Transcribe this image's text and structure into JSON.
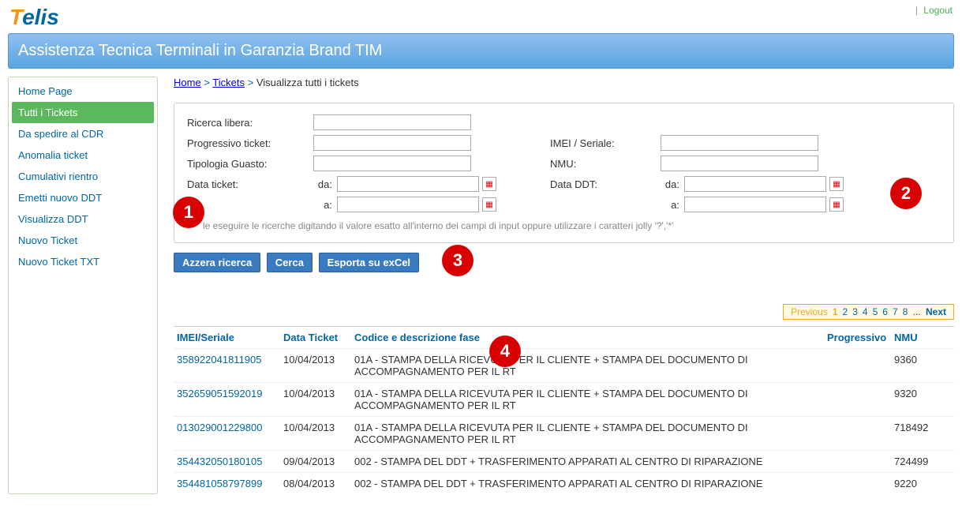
{
  "user": {
    "name": "",
    "logout": "Logout"
  },
  "logo": {
    "part1": "T",
    "part2": "elis"
  },
  "headerTitle": "Assistenza Tecnica Terminali in Garanzia Brand TIM",
  "sidebar": {
    "items": [
      {
        "label": "Home Page",
        "active": false
      },
      {
        "label": "Tutti i Tickets",
        "active": true
      },
      {
        "label": "Da spedire al CDR",
        "active": false
      },
      {
        "label": "Anomalia ticket",
        "active": false
      },
      {
        "label": "Cumulativi rientro",
        "active": false
      },
      {
        "label": "Emetti nuovo DDT",
        "active": false
      },
      {
        "label": "Visualizza DDT",
        "active": false
      },
      {
        "label": "Nuovo Ticket",
        "active": false
      },
      {
        "label": "Nuovo Ticket TXT",
        "active": false
      }
    ]
  },
  "breadcrumb": {
    "home": "Home",
    "tickets": "Tickets",
    "current": "Visualizza tutti i tickets",
    "sep": ">"
  },
  "filters": {
    "ricercaLibera": {
      "label": "Ricerca libera:",
      "value": ""
    },
    "progressivo": {
      "label": "Progressivo ticket:",
      "value": ""
    },
    "tipologia": {
      "label": "Tipologia Guasto:",
      "value": ""
    },
    "dataTicket": {
      "label": "Data ticket:",
      "daLabel": "da:",
      "aLabel": "a:",
      "da": "",
      "a": ""
    },
    "imei": {
      "label": "IMEI / Seriale:",
      "value": ""
    },
    "nmu": {
      "label": "NMU:",
      "value": ""
    },
    "dataDDT": {
      "label": "Data DDT:",
      "daLabel": "da:",
      "aLabel": "a:",
      "da": "",
      "a": ""
    },
    "hint": "le eseguire le ricerche digitando il valore esatto all'interno dei campi di input oppure utilizzare i caratteri jolly '?','*'"
  },
  "buttons": {
    "azzera": "Azzera ricerca",
    "cerca": "Cerca",
    "esporta": "Esporta su exCel"
  },
  "annotations": {
    "1": "1",
    "2": "2",
    "3": "3",
    "4": "4"
  },
  "pager": {
    "previous": "Previous",
    "pages": [
      "1",
      "2",
      "3",
      "4",
      "5",
      "6",
      "7",
      "8"
    ],
    "ellipsis": "...",
    "next": "Next",
    "current": "1"
  },
  "table": {
    "headers": {
      "imei": "IMEI/Seriale",
      "data": "Data Ticket",
      "fase": "Codice e descrizione fase",
      "progressivo": "Progressivo",
      "nmu": "NMU"
    },
    "rows": [
      {
        "imei": "358922041811905",
        "data": "10/04/2013",
        "fase": "01A - STAMPA DELLA RICEVUTA PER IL CLIENTE + STAMPA DEL DOCUMENTO DI ACCOMPAGNAMENTO PER IL RT",
        "progressivo": "",
        "nmu": "9360"
      },
      {
        "imei": "352659051592019",
        "data": "10/04/2013",
        "fase": "01A - STAMPA DELLA RICEVUTA PER IL CLIENTE + STAMPA DEL DOCUMENTO DI ACCOMPAGNAMENTO PER IL RT",
        "progressivo": "",
        "nmu": "9320"
      },
      {
        "imei": "013029001229800",
        "data": "10/04/2013",
        "fase": "01A - STAMPA DELLA RICEVUTA PER IL CLIENTE + STAMPA DEL DOCUMENTO DI ACCOMPAGNAMENTO PER IL RT",
        "progressivo": "",
        "nmu": "718492"
      },
      {
        "imei": "354432050180105",
        "data": "09/04/2013",
        "fase": "002 - STAMPA DEL DDT + TRASFERIMENTO APPARATI AL CENTRO DI RIPARAZIONE",
        "progressivo": "",
        "nmu": "724499"
      },
      {
        "imei": "354481058797899",
        "data": "08/04/2013",
        "fase": "002 - STAMPA DEL DDT + TRASFERIMENTO APPARATI AL CENTRO DI RIPARAZIONE",
        "progressivo": "",
        "nmu": "9220"
      }
    ]
  }
}
